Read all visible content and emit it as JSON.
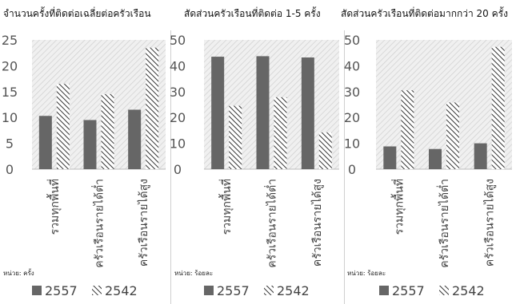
{
  "legend": {
    "series_2557": "2557",
    "series_2542": "2542"
  },
  "colors": {
    "series_2557": "#666666",
    "series_2542": "#333333",
    "plot_bg": "#e6e6e6",
    "axis": "#bbbbbb"
  },
  "chart_data": [
    {
      "type": "bar",
      "title": "จำนวนครั้งที่ติดต่อเฉลี่ยต่อครัวเรือน",
      "unit_label": "หน่วย: ครั้ง",
      "categories": [
        "รวมทุกพื้นที่",
        "ครัวเรือนรายได้ต่ำ",
        "ครัวเรือนรายได้สูง"
      ],
      "series": [
        {
          "name": "2557",
          "values": [
            10.3,
            9.5,
            11.5
          ]
        },
        {
          "name": "2542",
          "values": [
            16.5,
            14.5,
            23.5
          ]
        }
      ],
      "ylim": [
        0,
        25
      ],
      "yticks": [
        "0",
        "5",
        "10",
        "15",
        "20",
        "25"
      ]
    },
    {
      "type": "bar",
      "title": "สัดส่วนครัวเรือนที่ติดต่อ 1-5 ครั้ง",
      "unit_label": "หน่วย: ร้อยละ",
      "categories": [
        "รวมทุกพื้นที่",
        "ครัวเรือนรายได้ต่ำ",
        "ครัวเรือนรายได้สูง"
      ],
      "series": [
        {
          "name": "2557",
          "values": [
            43.5,
            43.7,
            43.2
          ]
        },
        {
          "name": "2542",
          "values": [
            24.5,
            27.8,
            14.2
          ]
        }
      ],
      "ylim": [
        0,
        50
      ],
      "yticks": [
        "0",
        "10",
        "20",
        "30",
        "40",
        "50"
      ]
    },
    {
      "type": "bar",
      "title": "สัดส่วนครัวเรือนที่ติดต่อมากกว่า 20 ครั้ง",
      "unit_label": "หน่วย: ร้อยละ",
      "categories": [
        "รวมทุกพื้นที่",
        "ครัวเรือนรายได้ต่ำ",
        "ครัวเรือนรายได้สูง"
      ],
      "series": [
        {
          "name": "2557",
          "values": [
            8.8,
            7.8,
            10.0
          ]
        },
        {
          "name": "2542",
          "values": [
            30.5,
            25.8,
            47.3
          ]
        }
      ],
      "ylim": [
        0,
        50
      ],
      "yticks": [
        "0",
        "10",
        "20",
        "30",
        "40",
        "50"
      ]
    }
  ]
}
